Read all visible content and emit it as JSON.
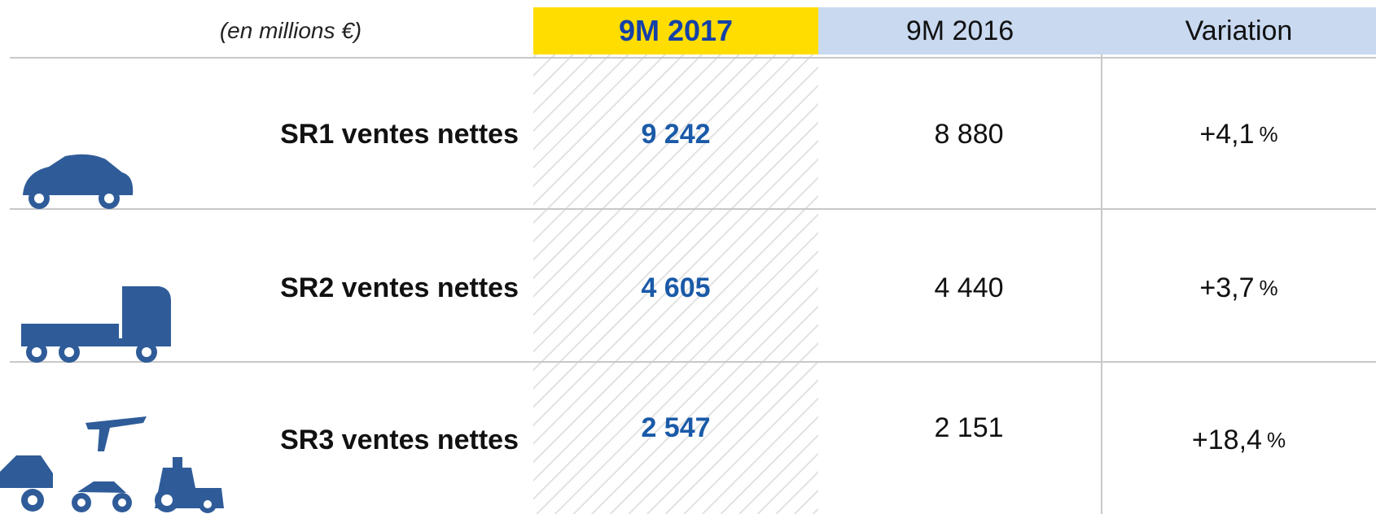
{
  "header": {
    "unit": "(en millions €)",
    "columns": [
      "9M 2017",
      "9M 2016",
      "Variation"
    ]
  },
  "table": {
    "rows": [
      {
        "label": "SR1 ventes nettes",
        "v2017": "9 242",
        "v2016": "8 880",
        "variation": "+4,1",
        "variation_unit": "%"
      },
      {
        "label": "SR2 ventes nettes",
        "v2017": "4 605",
        "v2016": "4 440",
        "variation": "+3,7",
        "variation_unit": "%"
      },
      {
        "label": "SR3 ventes nettes",
        "v2017": "2 547",
        "v2016": "2 151",
        "variation": "+18,4",
        "variation_unit": "%"
      }
    ]
  }
}
